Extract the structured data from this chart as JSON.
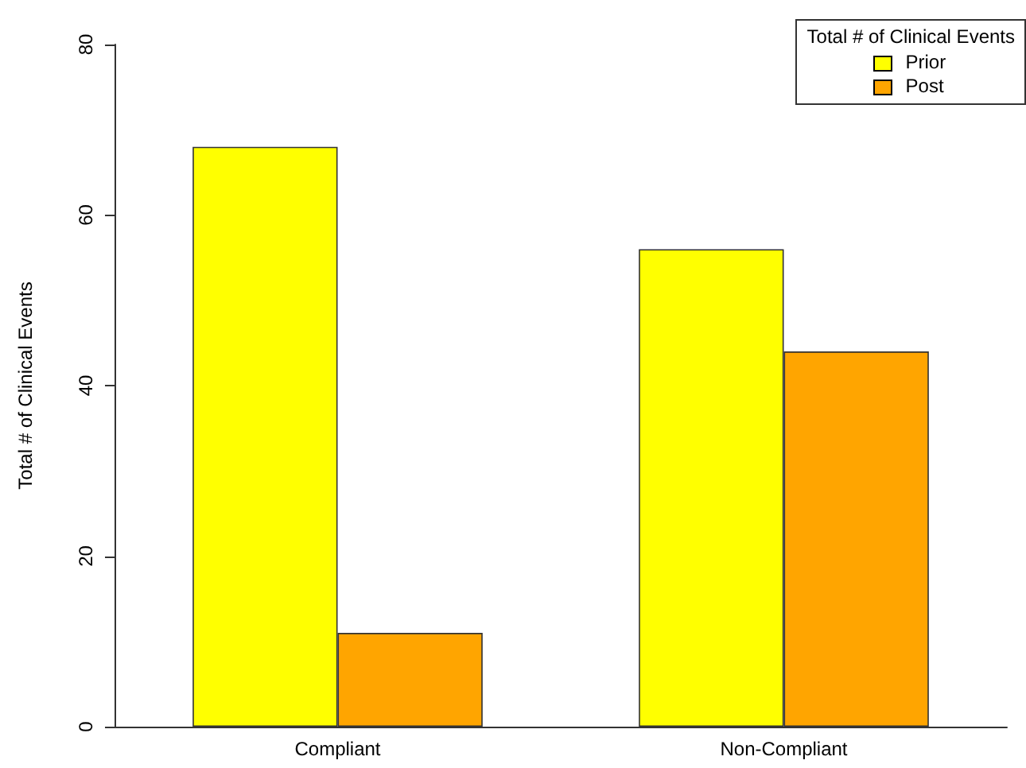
{
  "chart_data": {
    "type": "bar",
    "ylabel": "Total # of Clinical Events",
    "legend_title": "Total # of Clinical Events",
    "categories": [
      "Compliant",
      "Non-Compliant"
    ],
    "series": [
      {
        "name": "Prior",
        "color": "#ffff00",
        "values": [
          68,
          56
        ]
      },
      {
        "name": "Post",
        "color": "#ffa500",
        "values": [
          11,
          44
        ]
      }
    ],
    "ylim": [
      0,
      80
    ],
    "yticks": [
      0,
      20,
      40,
      60,
      80
    ],
    "grid": false,
    "legend": "top right"
  }
}
